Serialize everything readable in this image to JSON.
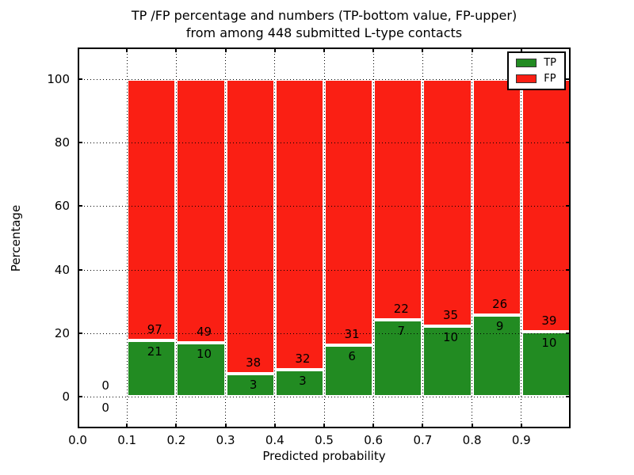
{
  "title": {
    "line1": "TP /FP percentage and numbers (TP-bottom value, FP-upper)",
    "line2": "from among 448 submitted L-type contacts"
  },
  "chart_data": {
    "type": "bar",
    "stacked": true,
    "normalized_to": 100,
    "title": "TP /FP percentage and numbers (TP-bottom value, FP-upper)\nfrom among 448 submitted L-type contacts",
    "xlabel": "Predicted probability",
    "ylabel": "Percentage",
    "xlim": [
      0.0,
      1.0
    ],
    "ylim": [
      -10,
      110
    ],
    "xticks": [
      "0.0",
      "0.1",
      "0.2",
      "0.3",
      "0.4",
      "0.5",
      "0.6",
      "0.7",
      "0.8",
      "0.9"
    ],
    "yticks": [
      "0",
      "20",
      "40",
      "60",
      "80",
      "100"
    ],
    "grid": "dotted",
    "legend_position": "upper right",
    "total_contacts": 448,
    "series_note": "green TP segment height = tp/(tp+fp)*100, red FP fills to 100%; labels show raw counts (TP bottom value, FP upper)",
    "colors": {
      "tp": "#228b22",
      "fp": "#fa1f14",
      "bar_edge": "#ffffff",
      "grid": "#000000"
    },
    "legend": [
      {
        "label": "TP",
        "color": "#228b22"
      },
      {
        "label": "FP",
        "color": "#fa1f14"
      }
    ],
    "bins": [
      {
        "range": [
          0.0,
          0.1
        ],
        "tp": 0,
        "fp": 0
      },
      {
        "range": [
          0.1,
          0.2
        ],
        "tp": 21,
        "fp": 97
      },
      {
        "range": [
          0.2,
          0.3
        ],
        "tp": 10,
        "fp": 49
      },
      {
        "range": [
          0.3,
          0.4
        ],
        "tp": 3,
        "fp": 38
      },
      {
        "range": [
          0.4,
          0.5
        ],
        "tp": 3,
        "fp": 32
      },
      {
        "range": [
          0.5,
          0.6
        ],
        "tp": 6,
        "fp": 31
      },
      {
        "range": [
          0.6,
          0.7
        ],
        "tp": 7,
        "fp": 22
      },
      {
        "range": [
          0.7,
          0.8
        ],
        "tp": 10,
        "fp": 35
      },
      {
        "range": [
          0.8,
          0.9
        ],
        "tp": 9,
        "fp": 26
      },
      {
        "range": [
          0.9,
          1.0
        ],
        "tp": 10,
        "fp": 39
      }
    ]
  }
}
